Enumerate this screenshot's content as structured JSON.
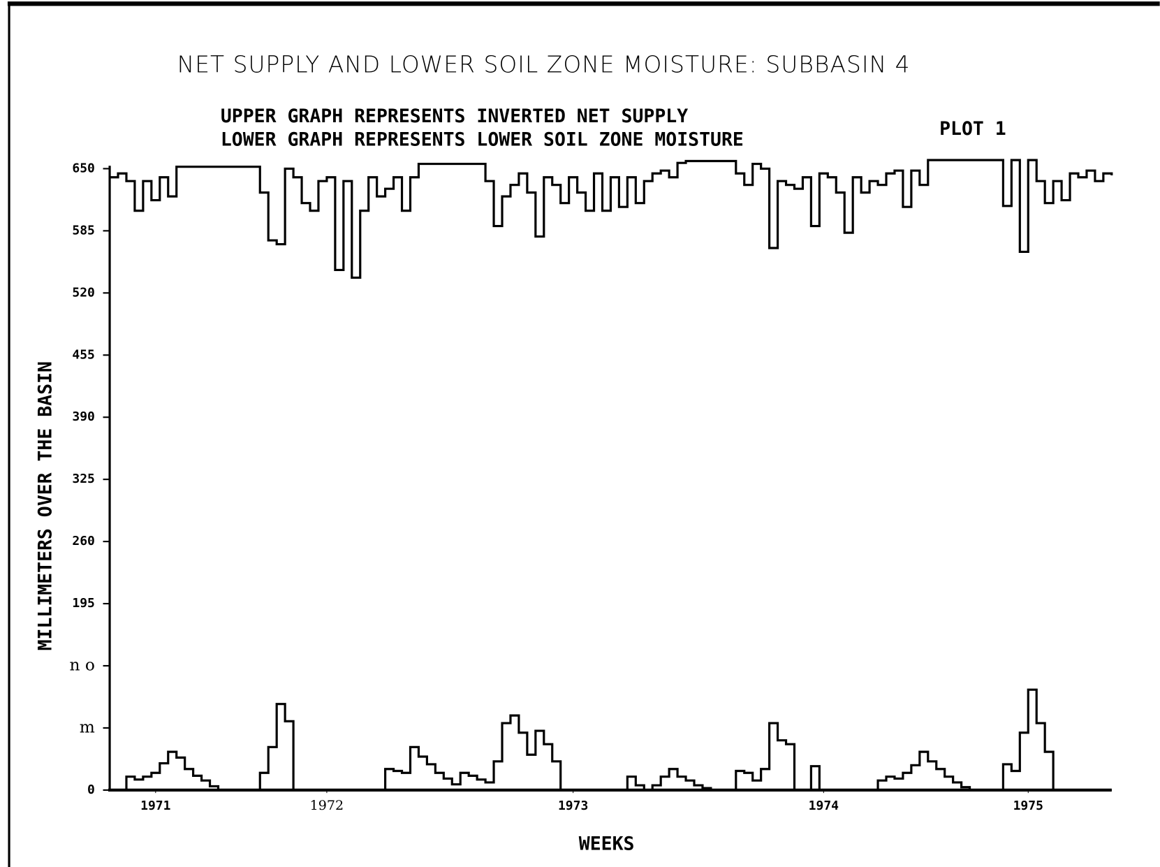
{
  "chart_data": {
    "type": "line",
    "step": true,
    "title": "NET SUPPLY AND LOWER SOIL ZONE MOISTURE: SUBBASIN 4",
    "subtitle": [
      "UPPER GRAPH REPRESENTS INVERTED NET SUPPLY",
      "LOWER GRAPH REPRESENTS LOWER SOIL ZONE MOISTURE"
    ],
    "annotation": "PLOT 1",
    "y_label": "MILLIMETERS OVER THE BASIN",
    "x_label": "WEEKS",
    "color": "#000000",
    "xlim": [
      0,
      240
    ],
    "xticks": [
      {
        "value": 11,
        "label": "1971"
      },
      {
        "value": 52,
        "label": "1972"
      },
      {
        "value": 111,
        "label": "1973"
      },
      {
        "value": 171,
        "label": "1974"
      },
      {
        "value": 220,
        "label": "1975"
      }
    ],
    "ylim": [
      0,
      650
    ],
    "yticks": [
      0,
      {
        "value": 65,
        "label": "m"
      },
      {
        "value": 130,
        "label": "n o"
      },
      195,
      260,
      325,
      390,
      455,
      520,
      585,
      650
    ],
    "x": [
      0,
      2,
      4,
      6,
      8,
      10,
      12,
      14,
      16,
      18,
      20,
      22,
      24,
      26,
      28,
      30,
      32,
      34,
      36,
      38,
      40,
      42,
      44,
      46,
      48,
      50,
      52,
      54,
      56,
      58,
      60,
      62,
      64,
      66,
      68,
      70,
      72,
      74,
      76,
      78,
      80,
      82,
      84,
      86,
      88,
      90,
      92,
      94,
      96,
      98,
      100,
      102,
      104,
      106,
      108,
      110,
      112,
      114,
      116,
      118,
      120,
      122,
      124,
      126,
      128,
      130,
      132,
      134,
      136,
      138,
      140,
      142,
      144,
      146,
      148,
      150,
      152,
      154,
      156,
      158,
      160,
      162,
      164,
      166,
      168,
      170,
      172,
      174,
      176,
      178,
      180,
      182,
      184,
      186,
      188,
      190,
      192,
      194,
      196,
      198,
      200,
      202,
      204,
      206,
      208,
      210,
      212,
      214,
      216,
      218,
      220,
      222,
      224,
      226,
      228,
      230,
      232,
      234,
      236,
      238,
      240
    ],
    "series": [
      {
        "name": "UPPER GRAPH",
        "values": [
          641,
          645,
          637,
          606,
          637,
          617,
          641,
          621,
          652,
          652,
          652,
          652,
          652,
          652,
          652,
          652,
          652,
          652,
          625,
          575,
          571,
          650,
          641,
          614,
          606,
          637,
          641,
          544,
          637,
          536,
          606,
          641,
          621,
          629,
          641,
          606,
          641,
          655,
          655,
          655,
          655,
          655,
          655,
          655,
          655,
          637,
          590,
          621,
          633,
          645,
          625,
          579,
          641,
          633,
          614,
          641,
          625,
          606,
          645,
          606,
          641,
          610,
          641,
          614,
          637,
          645,
          648,
          641,
          656,
          658,
          658,
          658,
          658,
          658,
          658,
          645,
          633,
          655,
          650,
          567,
          637,
          633,
          629,
          641,
          590,
          645,
          641,
          625,
          583,
          641,
          625,
          637,
          633,
          645,
          648,
          610,
          648,
          633,
          659,
          659,
          659,
          659,
          659,
          659,
          659,
          659,
          659,
          611,
          659,
          563,
          659,
          637,
          614,
          637,
          617,
          645,
          641,
          648,
          637,
          645,
          643
        ]
      },
      {
        "name": "LOWER GRAPH",
        "values": [
          0,
          0,
          14,
          11,
          14,
          18,
          28,
          40,
          34,
          22,
          15,
          10,
          4,
          0,
          0,
          0,
          0,
          0,
          18,
          45,
          90,
          72,
          0,
          0,
          0,
          0,
          0,
          0,
          0,
          0,
          0,
          0,
          0,
          22,
          20,
          18,
          45,
          35,
          27,
          18,
          12,
          6,
          18,
          15,
          11,
          8,
          30,
          70,
          78,
          60,
          37,
          62,
          48,
          30,
          0,
          0,
          0,
          0,
          0,
          0,
          0,
          0,
          14,
          5,
          0,
          5,
          14,
          22,
          14,
          10,
          5,
          2,
          0,
          0,
          0,
          20,
          18,
          10,
          22,
          70,
          52,
          48,
          0,
          0,
          25,
          0,
          0,
          0,
          0,
          0,
          0,
          0,
          10,
          14,
          12,
          18,
          26,
          40,
          30,
          22,
          14,
          8,
          3,
          0,
          0,
          0,
          0,
          27,
          20,
          60,
          105,
          70,
          40,
          0,
          0,
          0,
          0,
          0,
          0,
          0,
          0
        ]
      }
    ]
  }
}
